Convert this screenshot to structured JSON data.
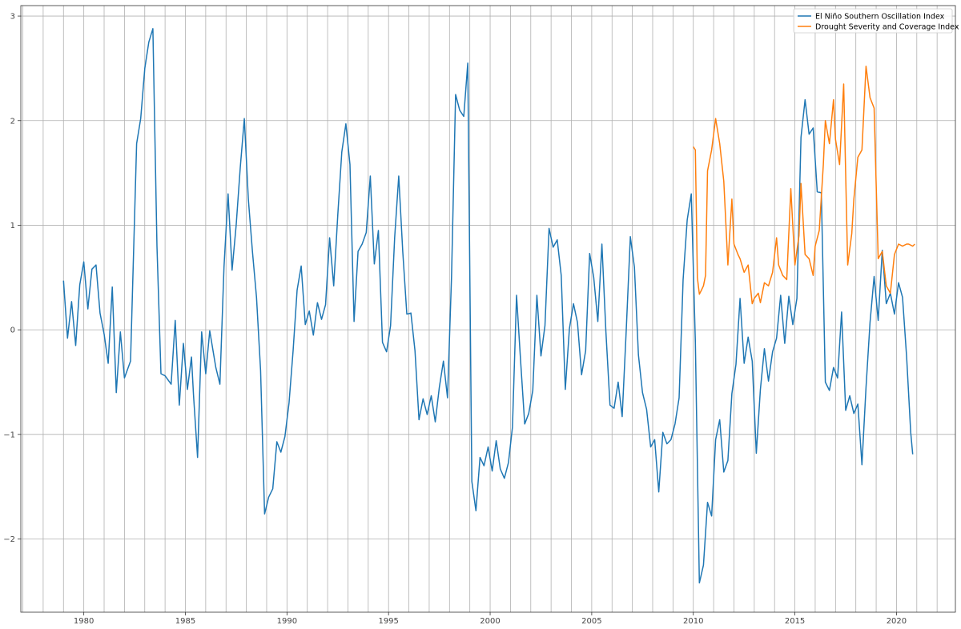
{
  "chart_data": {
    "type": "line",
    "title": "",
    "xlabel": "",
    "ylabel": "",
    "xlim": [
      1976.9,
      2022.9
    ],
    "ylim": [
      -2.7,
      3.1
    ],
    "x_ticks": [
      1980,
      1985,
      1990,
      1995,
      2000,
      2005,
      2010,
      2015,
      2020
    ],
    "x_tick_labels": [
      "1980",
      "1985",
      "1990",
      "1995",
      "2000",
      "2005",
      "2010",
      "2015",
      "2020"
    ],
    "y_ticks": [
      3,
      2,
      1,
      0,
      -1,
      -2
    ],
    "y_tick_labels": [
      "3",
      "2",
      "1",
      "0",
      "−1",
      "−2"
    ],
    "grid": true,
    "grid_x_step_years": 1,
    "legend_position": "top-right",
    "series": [
      {
        "name": "El Niño Southern Oscillation Index",
        "color": "#1f77b4",
        "x": [
          1979.0,
          1979.2,
          1979.4,
          1979.6,
          1979.8,
          1980.0,
          1980.2,
          1980.4,
          1980.6,
          1980.8,
          1981.0,
          1981.2,
          1981.4,
          1981.6,
          1981.8,
          1982.0,
          1982.3,
          1982.6,
          1982.8,
          1983.0,
          1983.2,
          1983.4,
          1983.6,
          1983.8,
          1984.0,
          1984.3,
          1984.5,
          1984.7,
          1984.9,
          1985.1,
          1985.3,
          1985.4,
          1985.6,
          1985.8,
          1986.0,
          1986.2,
          1986.5,
          1986.7,
          1986.9,
          1987.1,
          1987.3,
          1987.5,
          1987.7,
          1987.9,
          1988.1,
          1988.3,
          1988.5,
          1988.7,
          1988.9,
          1989.1,
          1989.3,
          1989.5,
          1989.7,
          1989.9,
          1990.1,
          1990.3,
          1990.5,
          1990.7,
          1990.9,
          1991.1,
          1991.3,
          1991.5,
          1991.7,
          1991.9,
          1992.1,
          1992.3,
          1992.5,
          1992.7,
          1992.9,
          1993.1,
          1993.3,
          1993.5,
          1993.7,
          1993.9,
          1994.1,
          1994.3,
          1994.5,
          1994.7,
          1994.9,
          1995.1,
          1995.3,
          1995.5,
          1995.7,
          1995.9,
          1996.1,
          1996.3,
          1996.5,
          1996.7,
          1996.9,
          1997.1,
          1997.3,
          1997.5,
          1997.7,
          1997.9,
          1998.1,
          1998.3,
          1998.5,
          1998.7,
          1998.9,
          1999.1,
          1999.3,
          1999.5,
          1999.7,
          1999.9,
          2000.1,
          2000.3,
          2000.5,
          2000.7,
          2000.9,
          2001.1,
          2001.3,
          2001.5,
          2001.7,
          2001.9,
          2002.1,
          2002.3,
          2002.5,
          2002.7,
          2002.9,
          2003.1,
          2003.3,
          2003.5,
          2003.7,
          2003.9,
          2004.1,
          2004.3,
          2004.5,
          2004.7,
          2004.9,
          2005.1,
          2005.3,
          2005.5,
          2005.7,
          2005.9,
          2006.1,
          2006.3,
          2006.5,
          2006.7,
          2006.9,
          2007.1,
          2007.3,
          2007.5,
          2007.7,
          2007.9,
          2008.1,
          2008.3,
          2008.5,
          2008.7,
          2008.9,
          2009.1,
          2009.3,
          2009.5,
          2009.7,
          2009.9,
          2010.1,
          2010.3,
          2010.5,
          2010.7,
          2010.9,
          2011.1,
          2011.3,
          2011.5,
          2011.7,
          2011.9,
          2012.1,
          2012.3,
          2012.5,
          2012.7,
          2012.9,
          2013.1,
          2013.3,
          2013.5,
          2013.7,
          2013.9,
          2014.1,
          2014.3,
          2014.5,
          2014.7,
          2014.9,
          2015.1,
          2015.3,
          2015.5,
          2015.7,
          2015.9,
          2016.1,
          2016.3,
          2016.5,
          2016.7,
          2016.9,
          2017.1,
          2017.3,
          2017.5,
          2017.7,
          2017.9,
          2018.1,
          2018.3,
          2018.5,
          2018.7,
          2018.9,
          2019.1,
          2019.3,
          2019.5,
          2019.7,
          2019.9,
          2020.1,
          2020.3,
          2020.5,
          2020.7,
          2020.8
        ],
        "y": [
          0.47,
          -0.08,
          0.27,
          -0.15,
          0.43,
          0.65,
          0.2,
          0.58,
          0.62,
          0.16,
          -0.04,
          -0.32,
          0.41,
          -0.6,
          -0.02,
          -0.46,
          -0.3,
          1.78,
          2.02,
          2.5,
          2.75,
          2.88,
          0.8,
          -0.42,
          -0.44,
          -0.52,
          0.09,
          -0.72,
          -0.13,
          -0.57,
          -0.26,
          -0.62,
          -1.22,
          -0.02,
          -0.42,
          -0.01,
          -0.36,
          -0.52,
          0.6,
          1.3,
          0.57,
          1.0,
          1.55,
          2.02,
          1.25,
          0.75,
          0.31,
          -0.39,
          -1.76,
          -1.6,
          -1.52,
          -1.07,
          -1.17,
          -1.02,
          -0.7,
          -0.2,
          0.38,
          0.61,
          0.05,
          0.18,
          -0.05,
          0.26,
          0.1,
          0.24,
          0.88,
          0.42,
          1.1,
          1.7,
          1.97,
          1.58,
          0.08,
          0.75,
          0.82,
          0.93,
          1.47,
          0.63,
          0.95,
          -0.12,
          -0.21,
          0.04,
          0.88,
          1.47,
          0.75,
          0.15,
          0.16,
          -0.2,
          -0.86,
          -0.66,
          -0.81,
          -0.63,
          -0.88,
          -0.55,
          -0.3,
          -0.65,
          0.5,
          2.25,
          2.1,
          2.04,
          2.55,
          -1.45,
          -1.73,
          -1.22,
          -1.3,
          -1.12,
          -1.35,
          -1.06,
          -1.33,
          -1.42,
          -1.27,
          -0.93,
          0.33,
          -0.3,
          -0.9,
          -0.8,
          -0.58,
          0.33,
          -0.25,
          0.04,
          0.97,
          0.79,
          0.86,
          0.52,
          -0.57,
          0.01,
          0.25,
          0.07,
          -0.43,
          -0.2,
          0.73,
          0.5,
          0.08,
          0.82,
          -0.02,
          -0.72,
          -0.75,
          -0.5,
          -0.83,
          0.0,
          0.89,
          0.6,
          -0.24,
          -0.6,
          -0.76,
          -1.12,
          -1.05,
          -1.55,
          -0.98,
          -1.09,
          -1.05,
          -0.9,
          -0.65,
          0.48,
          1.05,
          1.3,
          -0.12,
          -2.42,
          -2.25,
          -1.65,
          -1.78,
          -1.05,
          -0.86,
          -1.36,
          -1.25,
          -0.61,
          -0.33,
          0.3,
          -0.32,
          -0.07,
          -0.3,
          -1.18,
          -0.57,
          -0.18,
          -0.49,
          -0.21,
          -0.08,
          0.33,
          -0.13,
          0.32,
          0.05,
          0.3,
          1.84,
          2.2,
          1.87,
          1.93,
          1.32,
          1.31,
          -0.5,
          -0.58,
          -0.36,
          -0.46,
          0.17,
          -0.77,
          -0.63,
          -0.8,
          -0.71,
          -1.29,
          -0.55,
          0.07,
          0.51,
          0.09,
          0.76,
          0.25,
          0.35,
          0.15,
          0.45,
          0.31,
          -0.26,
          -0.98,
          -1.19
        ]
      },
      {
        "name": "Drought Severity and Coverage Index",
        "color": "#ff7f0e",
        "x": [
          2010.0,
          2010.1,
          2010.2,
          2010.3,
          2010.4,
          2010.5,
          2010.6,
          2010.7,
          2010.9,
          2011.1,
          2011.3,
          2011.5,
          2011.7,
          2011.9,
          2012.0,
          2012.2,
          2012.3,
          2012.5,
          2012.7,
          2012.9,
          2013.0,
          2013.2,
          2013.3,
          2013.5,
          2013.7,
          2013.9,
          2014.1,
          2014.2,
          2014.4,
          2014.6,
          2014.8,
          2015.0,
          2015.2,
          2015.3,
          2015.5,
          2015.7,
          2015.9,
          2016.0,
          2016.2,
          2016.4,
          2016.5,
          2016.7,
          2016.9,
          2017.0,
          2017.2,
          2017.4,
          2017.6,
          2017.8,
          2017.9,
          2018.1,
          2018.3,
          2018.5,
          2018.7,
          2018.9,
          2019.1,
          2019.3,
          2019.5,
          2019.7,
          2019.9,
          2020.1,
          2020.3,
          2020.5,
          2020.6,
          2020.8,
          2020.9
        ],
        "y": [
          1.75,
          1.72,
          0.5,
          0.34,
          0.38,
          0.42,
          0.52,
          1.52,
          1.72,
          2.02,
          1.78,
          1.42,
          0.62,
          1.25,
          0.82,
          0.72,
          0.68,
          0.55,
          0.62,
          0.25,
          0.3,
          0.35,
          0.26,
          0.45,
          0.42,
          0.55,
          0.88,
          0.62,
          0.52,
          0.48,
          1.35,
          0.62,
          0.9,
          1.4,
          0.72,
          0.68,
          0.52,
          0.8,
          0.95,
          1.58,
          2.0,
          1.78,
          2.2,
          1.82,
          1.58,
          2.35,
          0.62,
          0.92,
          1.25,
          1.65,
          1.72,
          2.52,
          2.22,
          2.12,
          0.68,
          0.75,
          0.42,
          0.35,
          0.72,
          0.82,
          0.8,
          0.82,
          0.82,
          0.8,
          0.82
        ]
      }
    ]
  }
}
